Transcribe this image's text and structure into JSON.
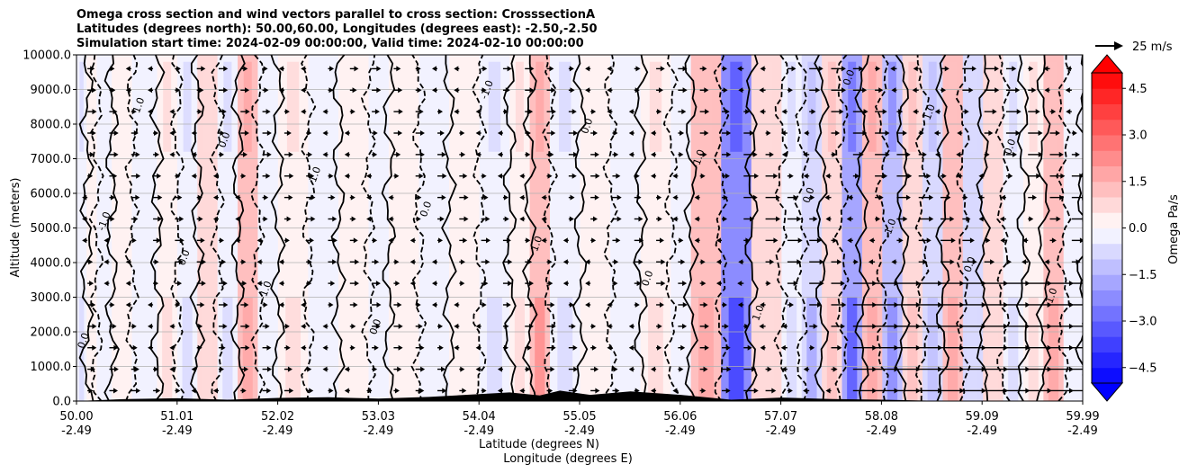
{
  "chart_data": {
    "type": "heatmap",
    "title_lines": [
      "Omega cross section and wind vectors parallel to cross section: CrosssectionA",
      "Latitudes (degrees north): 50.00,60.00, Longitudes (degrees east): -2.50,-2.50",
      "Simulation start time: 2024-02-09 00:00:00, Valid time: 2024-02-10 00:00:00"
    ],
    "ylabel": "Altitude (meters)",
    "xlabel_lines": [
      "Latitude (degrees N)",
      "Longitude (degrees E)"
    ],
    "ylim": [
      0,
      10000
    ],
    "y_ticks": [
      0,
      1000,
      2000,
      3000,
      4000,
      5000,
      6000,
      7000,
      8000,
      9000,
      10000
    ],
    "y_tick_labels": [
      "0.0",
      "1000.0",
      "2000.0",
      "3000.0",
      "4000.0",
      "5000.0",
      "6000.0",
      "7000.0",
      "8000.0",
      "9000.0",
      "10000.0"
    ],
    "x_ticks": [
      {
        "lat": "50.00",
        "lon": "-2.49"
      },
      {
        "lat": "51.01",
        "lon": "-2.49"
      },
      {
        "lat": "52.02",
        "lon": "-2.49"
      },
      {
        "lat": "53.03",
        "lon": "-2.49"
      },
      {
        "lat": "54.04",
        "lon": "-2.49"
      },
      {
        "lat": "55.05",
        "lon": "-2.49"
      },
      {
        "lat": "56.06",
        "lon": "-2.49"
      },
      {
        "lat": "57.07",
        "lon": "-2.49"
      },
      {
        "lat": "58.08",
        "lon": "-2.49"
      },
      {
        "lat": "59.09",
        "lon": "-2.49"
      },
      {
        "lat": "59.99",
        "lon": "-2.49"
      }
    ],
    "grid": "horizontal",
    "colorbar": {
      "label": "Omega Pa/s",
      "range": [
        -5,
        5
      ],
      "ticks": [
        4.5,
        3.0,
        1.5,
        0.0,
        -1.5,
        -3.0,
        -4.5
      ],
      "tick_labels": [
        "4.5",
        "3.0",
        "1.5",
        "0.0",
        "−1.5",
        "−3.0",
        "−4.5"
      ],
      "colormap": "bwr",
      "extend": "both"
    },
    "quiver_key": {
      "label": "25 m/s",
      "value": 25
    },
    "contour_levels": [
      -1.0,
      0.0,
      1.0
    ],
    "omega_bands": [
      {
        "lat": 50.0,
        "v": -0.4
      },
      {
        "lat": 50.1,
        "v": 0.2
      },
      {
        "lat": 50.2,
        "v": -0.3
      },
      {
        "lat": 50.35,
        "v": 0.3
      },
      {
        "lat": 50.55,
        "v": -0.3
      },
      {
        "lat": 50.8,
        "v": 0.4
      },
      {
        "lat": 51.0,
        "v": -0.5
      },
      {
        "lat": 51.2,
        "v": 0.6
      },
      {
        "lat": 51.4,
        "v": -0.4
      },
      {
        "lat": 51.6,
        "v": 1.2
      },
      {
        "lat": 51.8,
        "v": -0.3
      },
      {
        "lat": 52.0,
        "v": 0.4
      },
      {
        "lat": 52.3,
        "v": -0.3
      },
      {
        "lat": 52.6,
        "v": 0.3
      },
      {
        "lat": 52.9,
        "v": -0.2
      },
      {
        "lat": 53.1,
        "v": 0.3
      },
      {
        "lat": 53.4,
        "v": -0.3
      },
      {
        "lat": 53.7,
        "v": 0.3
      },
      {
        "lat": 54.0,
        "v": -0.4
      },
      {
        "lat": 54.3,
        "v": 0.4
      },
      {
        "lat": 54.5,
        "v": 1.4
      },
      {
        "lat": 54.7,
        "v": -0.5
      },
      {
        "lat": 55.0,
        "v": 0.3
      },
      {
        "lat": 55.3,
        "v": -0.2
      },
      {
        "lat": 55.6,
        "v": 0.4
      },
      {
        "lat": 55.9,
        "v": -0.3
      },
      {
        "lat": 56.1,
        "v": 1.0
      },
      {
        "lat": 56.4,
        "v": -2.2
      },
      {
        "lat": 56.7,
        "v": 0.6
      },
      {
        "lat": 57.0,
        "v": -0.4
      },
      {
        "lat": 57.2,
        "v": -1.0
      },
      {
        "lat": 57.4,
        "v": 0.8
      },
      {
        "lat": 57.6,
        "v": -2.0
      },
      {
        "lat": 57.8,
        "v": 1.2
      },
      {
        "lat": 58.0,
        "v": -1.5
      },
      {
        "lat": 58.2,
        "v": 0.9
      },
      {
        "lat": 58.4,
        "v": -0.8
      },
      {
        "lat": 58.6,
        "v": 1.0
      },
      {
        "lat": 58.8,
        "v": -0.6
      },
      {
        "lat": 59.0,
        "v": 0.5
      },
      {
        "lat": 59.2,
        "v": -0.4
      },
      {
        "lat": 59.4,
        "v": 0.4
      },
      {
        "lat": 59.6,
        "v": 1.0
      },
      {
        "lat": 59.8,
        "v": -0.3
      },
      {
        "lat": 59.99,
        "v": 0.2
      }
    ],
    "terrain": [
      {
        "lat": 50.0,
        "h": 0
      },
      {
        "lat": 50.5,
        "h": 60
      },
      {
        "lat": 51.0,
        "h": 80
      },
      {
        "lat": 51.5,
        "h": 40
      },
      {
        "lat": 52.0,
        "h": 90
      },
      {
        "lat": 52.5,
        "h": 110
      },
      {
        "lat": 53.0,
        "h": 70
      },
      {
        "lat": 53.5,
        "h": 120
      },
      {
        "lat": 54.0,
        "h": 200
      },
      {
        "lat": 54.3,
        "h": 250
      },
      {
        "lat": 54.6,
        "h": 160
      },
      {
        "lat": 54.8,
        "h": 300
      },
      {
        "lat": 55.1,
        "h": 180
      },
      {
        "lat": 55.5,
        "h": 280
      },
      {
        "lat": 56.0,
        "h": 180
      },
      {
        "lat": 56.5,
        "h": 40
      },
      {
        "lat": 57.0,
        "h": 100
      },
      {
        "lat": 57.5,
        "h": 60
      },
      {
        "lat": 58.0,
        "h": 40
      },
      {
        "lat": 58.5,
        "h": 10
      },
      {
        "lat": 59.0,
        "h": 0
      },
      {
        "lat": 59.99,
        "h": 0
      }
    ],
    "contour_label_samples": [
      "0.0",
      "1.0",
      "-1.0",
      "0.0",
      "1.0",
      "-1.0",
      "0.0",
      "1.0"
    ]
  }
}
